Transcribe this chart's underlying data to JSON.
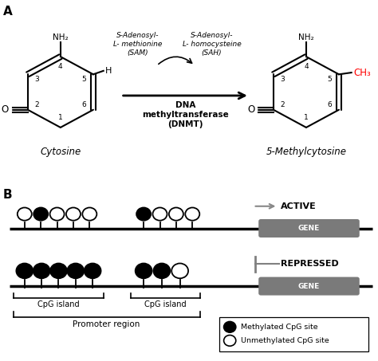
{
  "panel_a_label": "A",
  "panel_b_label": "B",
  "cytosine_label": "Cytosine",
  "methylcytosine_label": "5-Methylcytosine",
  "nh2_label": "NH₂",
  "h_label": "H",
  "ch3_label": "CH₃",
  "o_label": "O",
  "sam_label": "S-Adenosyl-\nL- methionine\n(SAM)",
  "sah_label": "S-Adenosyl-\nL- homocysteine\n(SAH)",
  "dnmt_label": "DNA\nmethyltransferase\n(DNMT)",
  "active_label": "ACTIVE",
  "repressed_label": "REPRESSED",
  "gene_label": "GENE",
  "cpg_island_label": "CpG island",
  "promoter_label": "Promoter region",
  "methylated_legend": "Methylated CpG site",
  "unmethylated_legend": "Unmethylated CpG site",
  "bg_color": "#ffffff",
  "ch3_color": "#ff0000",
  "gene_box_color": "#7a7a7a",
  "arrow_color": "#888888"
}
